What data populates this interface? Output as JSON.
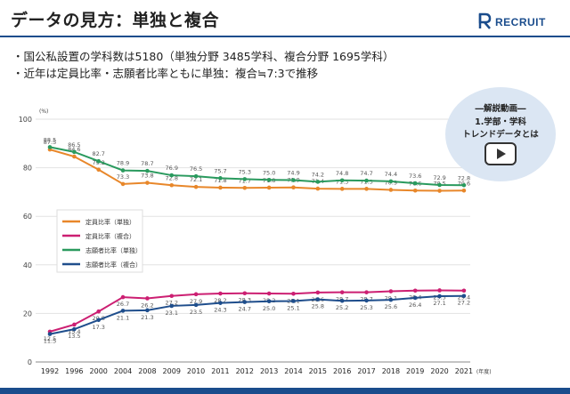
{
  "slide": {
    "title": "データの見方：単独と複合",
    "logo_text": "RECRUIT",
    "bullets": [
      "・国公私設置の学科数は5180（単独分野 3485学科、複合分野 1695学科）",
      "・近年は定員比率・志願者比率ともに単独：複合≒7:3で推移"
    ]
  },
  "video_badge": {
    "line1": "―解説動画―",
    "line2": "1.学部・学科",
    "line3": "トレンドデータとは",
    "icon": "play-icon"
  },
  "colors": {
    "accent": "#1a4c8c",
    "teiin_tandoku": "#e8872a",
    "teiin_fukugo": "#cc1f72",
    "shigan_tandoku": "#2a9a5e",
    "shigan_fukugo": "#1f4e8c"
  },
  "chart_data": {
    "type": "line",
    "unit_label": "(%)",
    "x_suffix": "(年度)",
    "categories": [
      "1992",
      "1996",
      "2000",
      "2004",
      "2008",
      "2009",
      "2010",
      "2011",
      "2012",
      "2013",
      "2014",
      "2015",
      "2016",
      "2017",
      "2018",
      "2019",
      "2020",
      "2021"
    ],
    "ylim": [
      0,
      100
    ],
    "yticks": [
      0,
      20,
      40,
      60,
      80,
      100
    ],
    "series": [
      {
        "name": "定員比率（単独）",
        "color": "#e8872a",
        "values": [
          87.5,
          84.6,
          79.2,
          73.3,
          73.8,
          72.8,
          72.1,
          71.8,
          71.7,
          71.8,
          71.9,
          71.4,
          71.3,
          71.3,
          70.9,
          70.6,
          70.5,
          70.6
        ],
        "labels": [
          "87.5",
          "84.6",
          "79.2",
          "73.3",
          "73.8",
          "72.8",
          "72.1",
          "71.8",
          "71.7",
          "71.8",
          "71.9",
          "71.4",
          "71.3",
          "71.3",
          "70.9",
          "70.6",
          "70.5",
          "70.6"
        ]
      },
      {
        "name": "定員比率（複合）",
        "color": "#cc1f72",
        "values": [
          12.5,
          15.4,
          20.8,
          26.7,
          26.2,
          27.2,
          27.9,
          28.2,
          28.3,
          28.2,
          28.1,
          28.6,
          28.7,
          28.7,
          29.1,
          29.4,
          29.5,
          29.4
        ],
        "labels": [
          "12.5",
          "15.4",
          "20.8",
          "26.7",
          "26.2",
          "27.2",
          "27.9",
          "28.2",
          "28.3",
          "28.2",
          "28.1",
          "28.6",
          "28.7",
          "28.7",
          "29.1",
          "29.4",
          "29.5",
          "29.4"
        ]
      },
      {
        "name": "志願者比率（単独）",
        "color": "#2a9a5e",
        "values": [
          88.5,
          86.5,
          82.7,
          78.9,
          78.7,
          76.9,
          76.5,
          75.7,
          75.3,
          75.0,
          74.9,
          74.2,
          74.8,
          74.7,
          74.4,
          73.6,
          72.9,
          72.8
        ],
        "labels": [
          "88.5",
          "86.5",
          "82.7",
          "78.9",
          "78.7",
          "76.9",
          "76.5",
          "75.7",
          "75.3",
          "75.0",
          "74.9",
          "74.2",
          "74.8",
          "74.7",
          "74.4",
          "73.6",
          "72.9",
          "72.8"
        ]
      },
      {
        "name": "志願者比率（複合）",
        "color": "#1f4e8c",
        "values": [
          11.5,
          13.5,
          17.3,
          21.1,
          21.3,
          23.1,
          23.5,
          24.3,
          24.7,
          25.0,
          25.1,
          25.8,
          25.2,
          25.3,
          25.6,
          26.4,
          27.1,
          27.2
        ],
        "labels": [
          "11.5",
          "13.5",
          "17.3",
          "21.1",
          "21.3",
          "23.1",
          "23.5",
          "24.3",
          "24.7",
          "25.0",
          "25.1",
          "25.8",
          "25.2",
          "25.3",
          "25.6",
          "26.4",
          "27.1",
          "27.2"
        ]
      }
    ],
    "legend": {
      "placement": "left-middle"
    }
  }
}
